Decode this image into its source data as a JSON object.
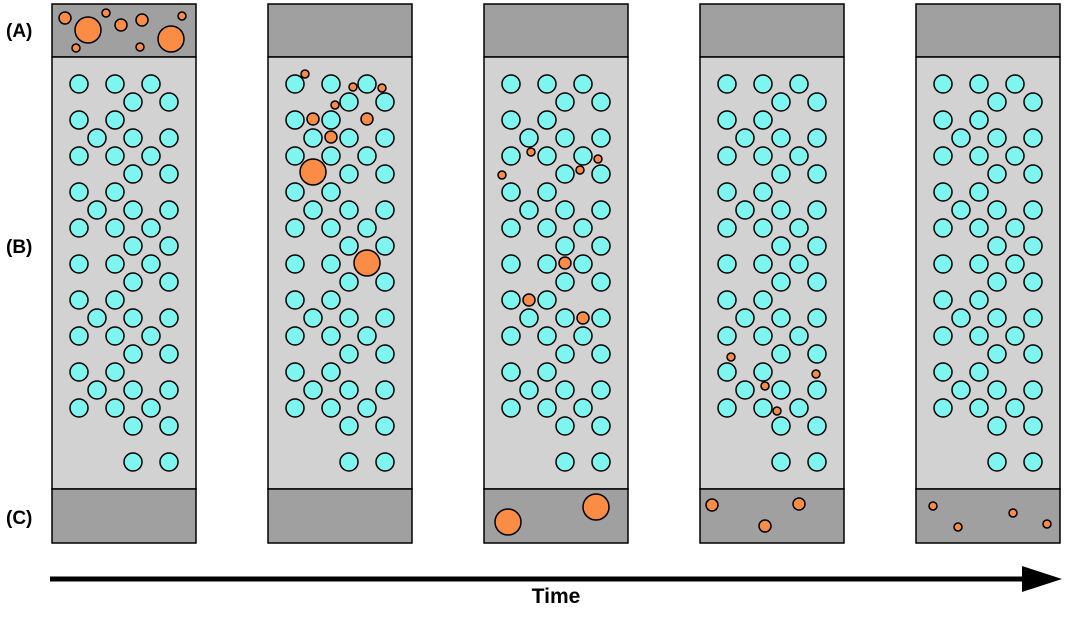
{
  "labels": {
    "a": "(A)",
    "b": "(B)",
    "c": "(C)",
    "time": "Time"
  },
  "colors": {
    "end_section": "#a0a0a0",
    "middle_section": "#d2d2d2",
    "packing": "#7ff5f0",
    "sample": "#fa8c46",
    "outline": "#000000"
  }
}
